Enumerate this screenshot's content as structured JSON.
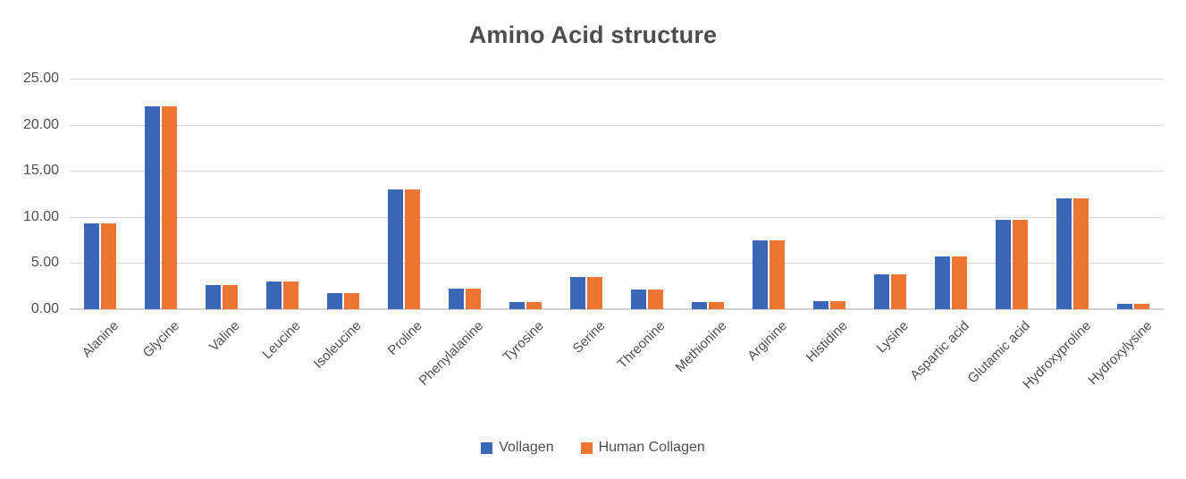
{
  "title": "Amino Acid structure",
  "chart_data": {
    "type": "bar",
    "title": "Amino Acid structure",
    "categories": [
      "Alanine",
      "Glycine",
      "Valine",
      "Leucine",
      "Isoleucine",
      "Proline",
      "Phenylalanine",
      "Tyrosine",
      "Serine",
      "Threonine",
      "Methionine",
      "Arginine",
      "Histidine",
      "Lysine",
      "Aspartic acid",
      "Glutamic acid",
      "Hydroxyproline",
      "Hydroxylysine"
    ],
    "series": [
      {
        "name": "Vollagen",
        "color": "#3a67b8",
        "values": [
          9.3,
          22.0,
          2.6,
          3.0,
          1.7,
          13.0,
          2.2,
          0.8,
          3.5,
          2.1,
          0.8,
          7.5,
          0.9,
          3.8,
          5.7,
          9.7,
          12.0,
          0.6
        ]
      },
      {
        "name": "Human Collagen",
        "color": "#ef7532",
        "values": [
          9.3,
          22.0,
          2.6,
          3.0,
          1.7,
          13.0,
          2.2,
          0.8,
          3.5,
          2.1,
          0.8,
          7.5,
          0.9,
          3.8,
          5.7,
          9.7,
          12.0,
          0.6
        ]
      }
    ],
    "xlabel": "",
    "ylabel": "",
    "ylim": [
      0,
      25
    ],
    "ytick_step": 5,
    "ytick_labels": [
      "0.00",
      "5.00",
      "10.00",
      "15.00",
      "20.00",
      "25.00"
    ],
    "grid": true,
    "gridline_color": "#d9d9d9",
    "legend_position": "bottom"
  }
}
